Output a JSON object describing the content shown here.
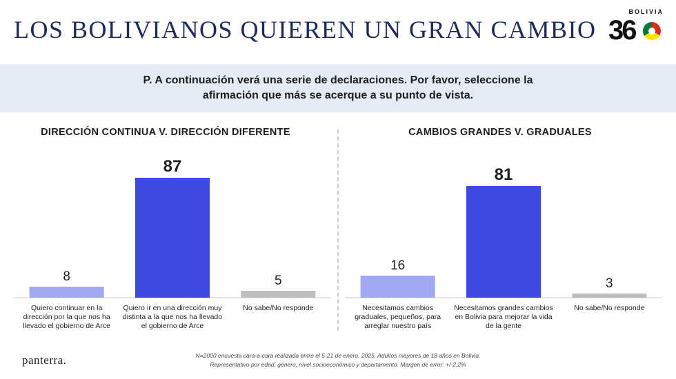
{
  "title": "LOS BOLIVIANOS QUIEREN UN GRAN CAMBIO",
  "logo": {
    "country": "BOLIVIA",
    "number": "36"
  },
  "question": "P. A continuación verá una serie de declaraciones. Por favor, seleccione la afirmación que más se acerque a su punto de vista.",
  "footer": {
    "brand": "panterra.",
    "note_line1": "N=2000 encuesta cara-a-cara realizada entre el 5-21 de enero, 2025. Adultos mayores de 18 años en Bolivia.",
    "note_line2": "Representativo por edad, género, nivel socioeconómico y departamento. Margen de error: +/-2.2%"
  },
  "chart_data": [
    {
      "type": "bar",
      "title": "DIRECCIÓN CONTINUA V. DIRECCIÓN DIFERENTE",
      "categories": [
        [
          "Quiero continuar en la",
          "dirección por la que nos ha",
          "llevado el gobierno de Arce"
        ],
        [
          "Quiero ir en una dirección muy",
          "distinta a la que nos ha llevado",
          "el gobierno de Arce"
        ],
        [
          "No sabe/No responde"
        ]
      ],
      "values": [
        8,
        87,
        5
      ],
      "colors": [
        "#a3a8f2",
        "#3d49df",
        "#bdbdbd"
      ],
      "ylim": [
        0,
        100
      ]
    },
    {
      "type": "bar",
      "title": "CAMBIOS GRANDES V. GRADUALES",
      "categories": [
        [
          "Necesitamos cambios",
          "graduales, pequeños, para",
          "arreglar nuestro país"
        ],
        [
          "Necesitamos grandes cambios",
          "en Bolivia para mejorar la vida",
          "de la gente"
        ],
        [
          "No sabe/No responde"
        ]
      ],
      "values": [
        16,
        81,
        3
      ],
      "colors": [
        "#a3a8f2",
        "#3d49df",
        "#bdbdbd"
      ],
      "ylim": [
        0,
        100
      ]
    }
  ]
}
